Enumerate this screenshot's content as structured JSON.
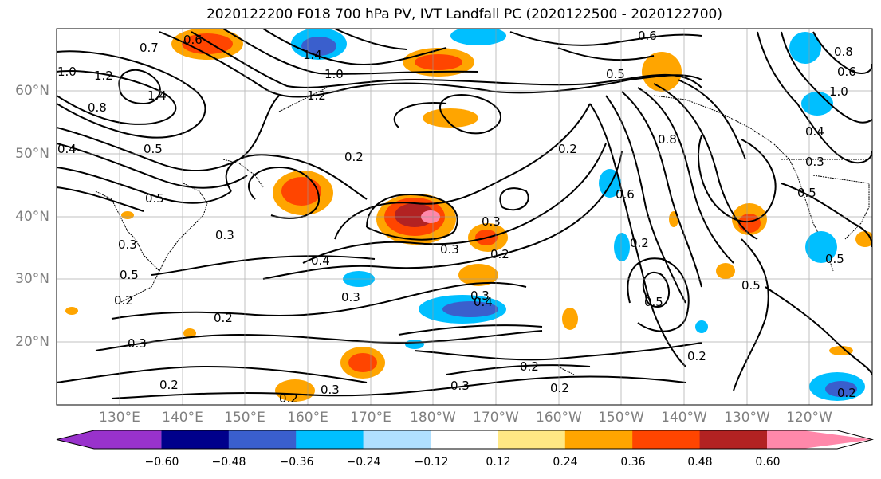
{
  "title": "2020122200 F018 700 hPa PV, IVT Landfall PC (2020122500 - 2020122700)",
  "lat_labels": [
    "60°N",
    "50°N",
    "40°N",
    "30°N",
    "20°N"
  ],
  "lon_labels": [
    "130°E",
    "140°E",
    "150°E",
    "160°E",
    "170°E",
    "180°W",
    "170°W",
    "160°W",
    "150°W",
    "140°W",
    "130°W",
    "120°W"
  ],
  "colorbar": {
    "colors": [
      "#9932cc",
      "#00008b",
      "#3a5fcd",
      "#00bfff",
      "#b0e0ff",
      "#ffffff",
      "#ffe884",
      "#ffa500",
      "#ff4500",
      "#b22222",
      "#ff88aa"
    ],
    "tick_labels": [
      "−0.60",
      "−0.48",
      "−0.36",
      "−0.24",
      "−0.12",
      "0.12",
      "0.24",
      "0.36",
      "0.48",
      "0.60"
    ]
  },
  "contour_labels": [
    "0.6",
    "0.7",
    "1.0",
    "1.2",
    "1.4",
    "0.8",
    "0.4",
    "0.5",
    "0.5",
    "0.3",
    "0.2",
    "0.3",
    "0.4",
    "0.3",
    "0.2",
    "0.2",
    "0.3",
    "0.2",
    "0.2",
    "0.3",
    "0.3",
    "0.2",
    "0.4",
    "0.3",
    "0.2",
    "0.2",
    "0.6",
    "0.8",
    "0.2",
    "0.5",
    "0.2",
    "0.5",
    "0.3",
    "0.4",
    "0.5",
    "0.5",
    "1.0",
    "0.8",
    "0.6",
    "1.4",
    "1.0",
    "1.2",
    "0.6",
    "0.5",
    "0.3",
    "0.3",
    "0.2",
    "0.2",
    "0.5"
  ]
}
